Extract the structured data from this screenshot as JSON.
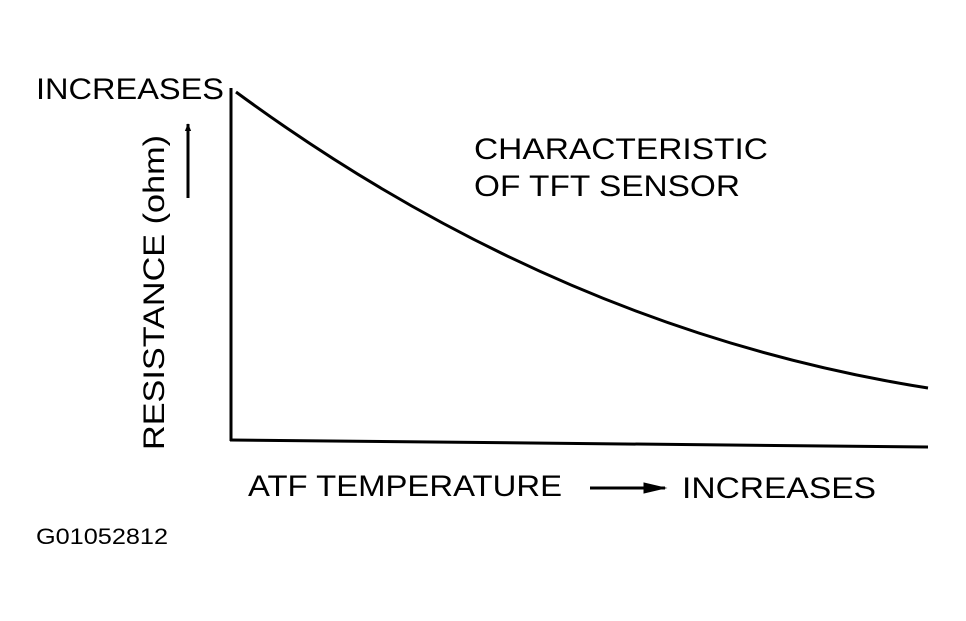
{
  "y_axis": {
    "end_label": "INCREASES",
    "title": "RESISTANCE  (ohm)"
  },
  "x_axis": {
    "title": "ATF TEMPERATURE",
    "end_label": "INCREASES"
  },
  "curve_label": [
    "CHARACTERISTIC",
    "OF TFT SENSOR"
  ],
  "figure_id": "G01052812"
}
